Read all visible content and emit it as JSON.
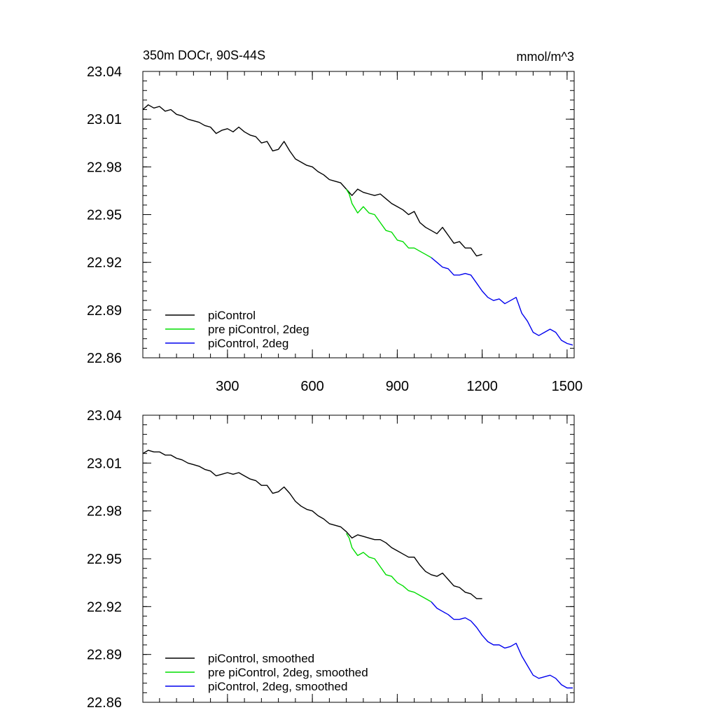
{
  "header": {
    "title_left": "350m DOCr, 90S-44S",
    "title_right": "mmol/m^3"
  },
  "chart_data": [
    {
      "type": "line",
      "title": "350m DOCr, 90S-44S",
      "units": "mmol/m^3",
      "xlim": [
        1,
        1525
      ],
      "ylim": [
        22.86,
        23.04
      ],
      "xticks": [
        300,
        600,
        900,
        1200,
        1500
      ],
      "yticks": [
        22.86,
        22.89,
        22.92,
        22.95,
        22.98,
        23.01,
        23.04
      ],
      "ytick_labels": [
        "22.86",
        "22.89",
        "22.92",
        "22.95",
        "22.98",
        "23.01",
        "23.04"
      ],
      "xtick_labels": [
        "300",
        "600",
        "900",
        "1200",
        "1500"
      ],
      "legend": "bottom-left",
      "series": [
        {
          "name": "piControl",
          "color": "#000000",
          "x": [
            1,
            20,
            40,
            60,
            80,
            100,
            120,
            140,
            160,
            180,
            200,
            220,
            240,
            260,
            280,
            300,
            320,
            340,
            360,
            380,
            400,
            420,
            440,
            460,
            480,
            500,
            520,
            540,
            560,
            580,
            600,
            620,
            640,
            660,
            680,
            700,
            720,
            740,
            760,
            780,
            800,
            820,
            840,
            860,
            880,
            900,
            920,
            940,
            960,
            980,
            1000,
            1020,
            1040,
            1060,
            1080,
            1100,
            1120,
            1140,
            1160,
            1180,
            1200
          ],
          "y": [
            23.016,
            23.019,
            23.017,
            23.018,
            23.015,
            23.016,
            23.013,
            23.012,
            23.01,
            23.009,
            23.008,
            23.006,
            23.005,
            23.001,
            23.003,
            23.004,
            23.002,
            23.005,
            23.002,
            23.0,
            22.999,
            22.995,
            22.996,
            22.99,
            22.991,
            22.996,
            22.99,
            22.985,
            22.983,
            22.981,
            22.98,
            22.977,
            22.975,
            22.972,
            22.971,
            22.97,
            22.966,
            22.962,
            22.966,
            22.964,
            22.963,
            22.962,
            22.963,
            22.96,
            22.957,
            22.955,
            22.953,
            22.95,
            22.952,
            22.945,
            22.942,
            22.94,
            22.938,
            22.942,
            22.937,
            22.932,
            22.933,
            22.929,
            22.929,
            22.924,
            22.925
          ]
        },
        {
          "name": "pre piControl, 2deg",
          "color": "#00dd00",
          "x": [
            720,
            730,
            740,
            760,
            780,
            800,
            820,
            840,
            860,
            880,
            900,
            920,
            940,
            960,
            980,
            1000,
            1020
          ],
          "y": [
            22.966,
            22.963,
            22.957,
            22.951,
            22.955,
            22.951,
            22.95,
            22.945,
            22.94,
            22.939,
            22.934,
            22.933,
            22.929,
            22.929,
            22.927,
            22.925,
            22.923
          ]
        },
        {
          "name": "piControl, 2deg",
          "color": "#0000ee",
          "x": [
            1020,
            1040,
            1060,
            1080,
            1100,
            1120,
            1140,
            1160,
            1180,
            1200,
            1220,
            1240,
            1260,
            1280,
            1300,
            1320,
            1340,
            1360,
            1380,
            1400,
            1420,
            1440,
            1460,
            1480,
            1500,
            1520
          ],
          "y": [
            22.923,
            22.92,
            22.917,
            22.916,
            22.912,
            22.912,
            22.913,
            22.912,
            22.907,
            22.902,
            22.898,
            22.896,
            22.897,
            22.894,
            22.896,
            22.898,
            22.888,
            22.883,
            22.876,
            22.874,
            22.876,
            22.878,
            22.876,
            22.871,
            22.869,
            22.868
          ]
        }
      ]
    },
    {
      "type": "line",
      "xlim": [
        1,
        1525
      ],
      "ylim": [
        22.86,
        23.04
      ],
      "xticks": [
        300,
        600,
        900,
        1200,
        1500
      ],
      "yticks": [
        22.86,
        22.89,
        22.92,
        22.95,
        22.98,
        23.01,
        23.04
      ],
      "ytick_labels": [
        "22.86",
        "22.89",
        "22.92",
        "22.95",
        "22.98",
        "23.01",
        "23.04"
      ],
      "legend": "bottom-left",
      "series": [
        {
          "name": "piControl, smoothed",
          "color": "#000000",
          "x": [
            1,
            20,
            40,
            60,
            80,
            100,
            120,
            140,
            160,
            180,
            200,
            220,
            240,
            260,
            280,
            300,
            320,
            340,
            360,
            380,
            400,
            420,
            440,
            460,
            480,
            500,
            520,
            540,
            560,
            580,
            600,
            620,
            640,
            660,
            680,
            700,
            720,
            740,
            760,
            780,
            800,
            820,
            840,
            860,
            880,
            900,
            920,
            940,
            960,
            980,
            1000,
            1020,
            1040,
            1060,
            1080,
            1100,
            1120,
            1140,
            1160,
            1180,
            1200
          ],
          "y": [
            23.016,
            23.018,
            23.017,
            23.017,
            23.015,
            23.015,
            23.013,
            23.012,
            23.01,
            23.009,
            23.008,
            23.006,
            23.005,
            23.002,
            23.003,
            23.004,
            23.003,
            23.004,
            23.002,
            23.0,
            22.999,
            22.996,
            22.996,
            22.991,
            22.992,
            22.995,
            22.991,
            22.986,
            22.983,
            22.981,
            22.98,
            22.977,
            22.975,
            22.972,
            22.971,
            22.97,
            22.967,
            22.963,
            22.965,
            22.964,
            22.963,
            22.962,
            22.962,
            22.96,
            22.957,
            22.955,
            22.953,
            22.951,
            22.951,
            22.946,
            22.942,
            22.94,
            22.939,
            22.941,
            22.937,
            22.933,
            22.932,
            22.929,
            22.928,
            22.925,
            22.925
          ]
        },
        {
          "name": "pre piControl, 2deg, smoothed",
          "color": "#00dd00",
          "x": [
            720,
            730,
            740,
            760,
            780,
            800,
            820,
            840,
            860,
            880,
            900,
            920,
            940,
            960,
            980,
            1000,
            1020
          ],
          "y": [
            22.966,
            22.963,
            22.957,
            22.952,
            22.954,
            22.951,
            22.95,
            22.945,
            22.94,
            22.939,
            22.935,
            22.933,
            22.93,
            22.929,
            22.927,
            22.925,
            22.923
          ]
        },
        {
          "name": "piControl, 2deg, smoothed",
          "color": "#0000ee",
          "x": [
            1020,
            1040,
            1060,
            1080,
            1100,
            1120,
            1140,
            1160,
            1180,
            1200,
            1220,
            1240,
            1260,
            1280,
            1300,
            1320,
            1340,
            1360,
            1380,
            1400,
            1420,
            1440,
            1460,
            1480,
            1500,
            1520
          ],
          "y": [
            22.923,
            22.919,
            22.917,
            22.915,
            22.912,
            22.912,
            22.913,
            22.911,
            22.907,
            22.902,
            22.898,
            22.896,
            22.896,
            22.894,
            22.895,
            22.897,
            22.889,
            22.883,
            22.877,
            22.875,
            22.876,
            22.877,
            22.875,
            22.871,
            22.869,
            22.869
          ]
        }
      ]
    }
  ]
}
